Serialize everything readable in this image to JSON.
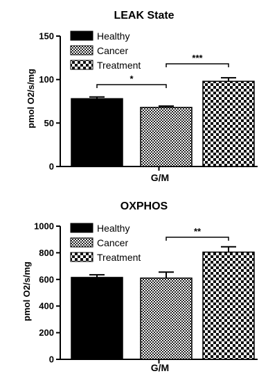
{
  "chart_data": [
    {
      "type": "bar",
      "title": "LEAK State",
      "ylabel": "pmol O2/s/mg",
      "xlabel": "G/M",
      "ylim": [
        0,
        150
      ],
      "yticks": [
        "0",
        "50",
        "100",
        "150"
      ],
      "series": [
        {
          "name": "Healthy",
          "value": 78,
          "error": 2,
          "pattern": "solid"
        },
        {
          "name": "Cancer",
          "value": 68,
          "error": 1.5,
          "pattern": "checker"
        },
        {
          "name": "Treatment",
          "value": 98,
          "error": 4,
          "pattern": "coarse-checker"
        }
      ],
      "significance": [
        {
          "from": "Healthy",
          "to": "Cancer",
          "label": "*"
        },
        {
          "from": "Cancer",
          "to": "Treatment",
          "label": "***"
        }
      ],
      "legend_position": "top-left"
    },
    {
      "type": "bar",
      "title": "OXPHOS",
      "ylabel": "pmol O2/s/mg",
      "xlabel": "G/M",
      "ylim": [
        0,
        1000
      ],
      "yticks": [
        "0",
        "200",
        "400",
        "600",
        "800",
        "1000"
      ],
      "series": [
        {
          "name": "Healthy",
          "value": 615,
          "error": 20,
          "pattern": "solid"
        },
        {
          "name": "Cancer",
          "value": 610,
          "error": 45,
          "pattern": "checker"
        },
        {
          "name": "Treatment",
          "value": 805,
          "error": 40,
          "pattern": "coarse-checker"
        }
      ],
      "significance": [
        {
          "from": "Cancer",
          "to": "Treatment",
          "label": "**"
        }
      ],
      "legend_position": "top-left"
    }
  ]
}
